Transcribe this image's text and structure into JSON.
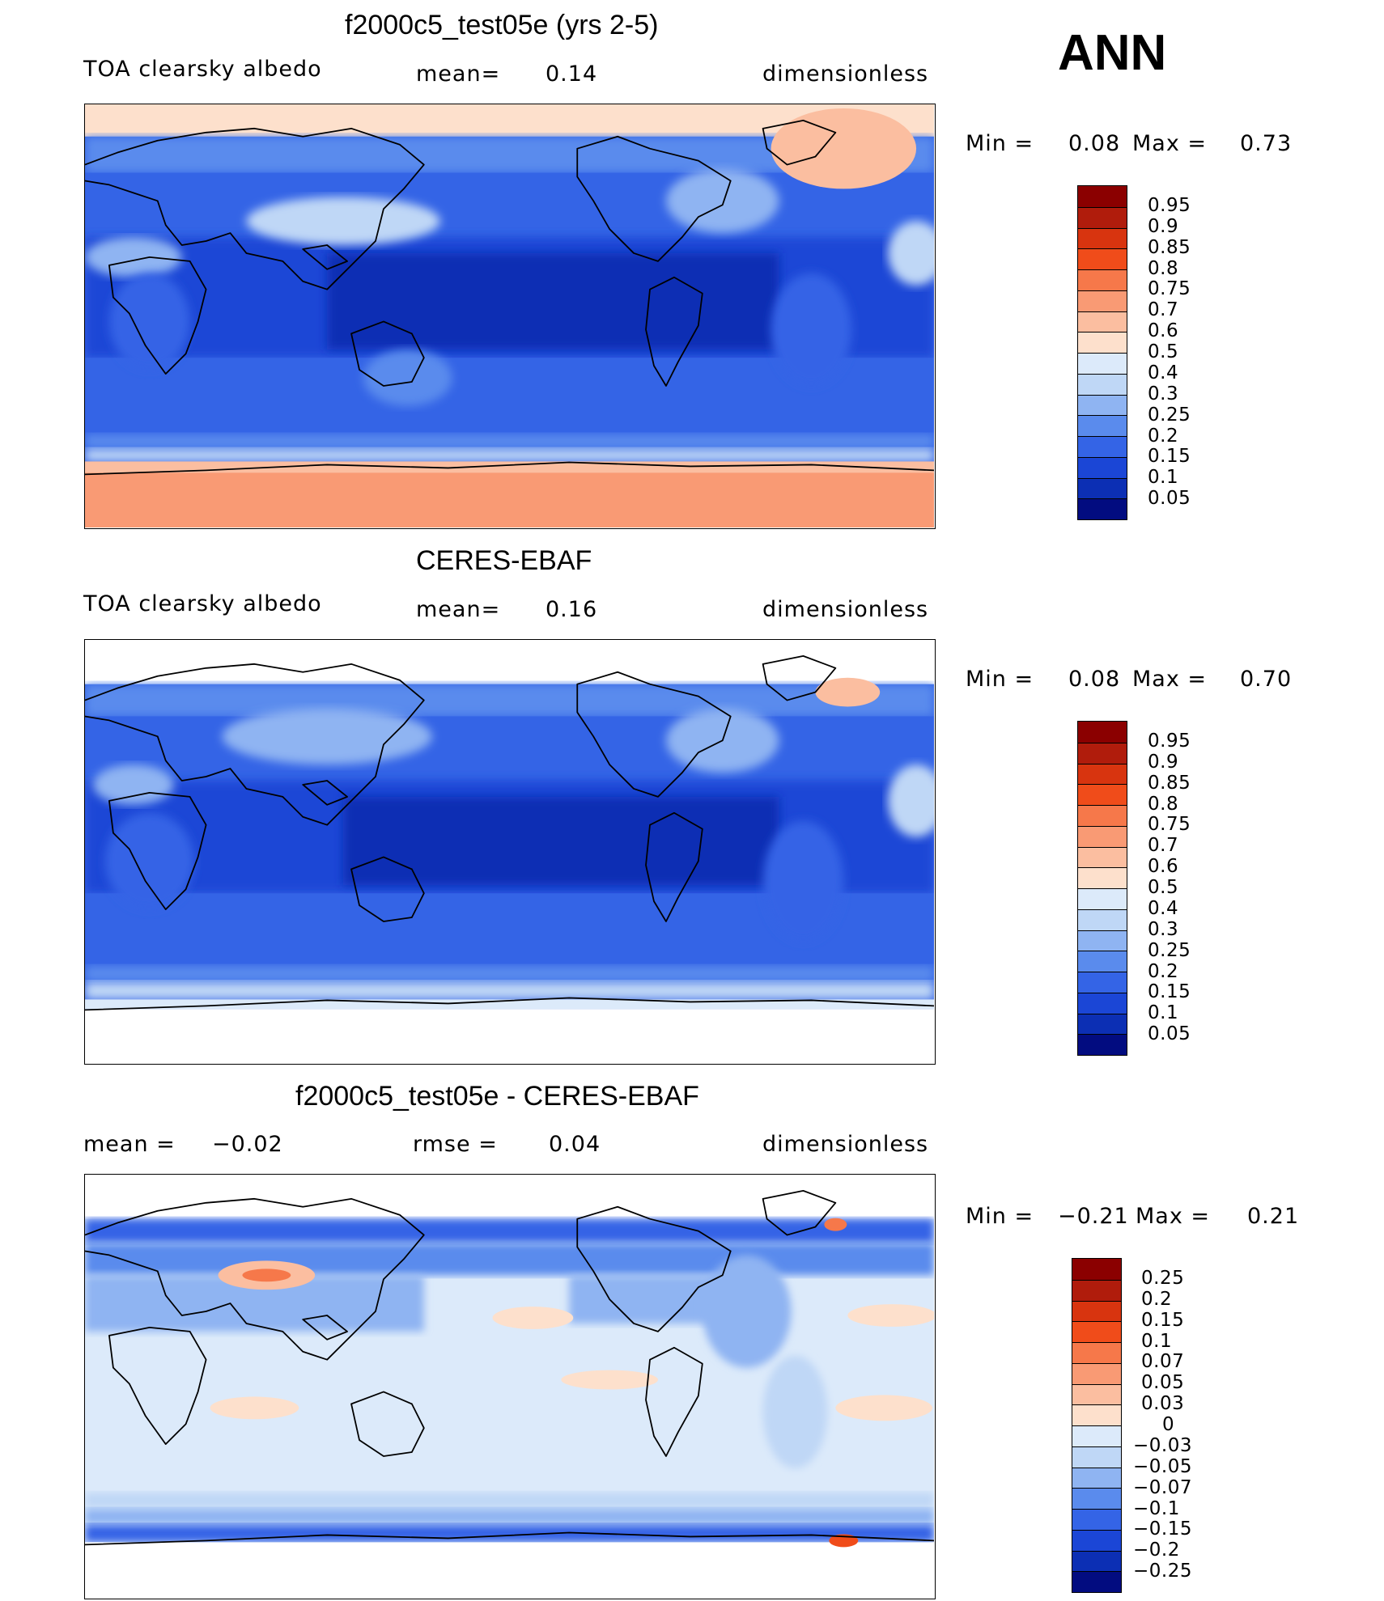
{
  "season": "ANN",
  "panels": [
    {
      "title": "f2000c5_test05e (yrs 2-5)",
      "left_label": "TOA clearsky albedo",
      "mid_label": "mean=",
      "mid_value": "0.14",
      "units": "dimensionless",
      "min_label": "Min =",
      "min_value": "0.08",
      "max_label": "Max =",
      "max_value": "0.73"
    },
    {
      "title": "CERES-EBAF",
      "left_label": "TOA clearsky albedo",
      "mid_label": "mean=",
      "mid_value": "0.16",
      "units": "dimensionless",
      "min_label": "Min =",
      "min_value": "0.08",
      "max_label": "Max =",
      "max_value": "0.70"
    },
    {
      "title": "f2000c5_test05e - CERES-EBAF",
      "left_label": "mean =",
      "left_value": "−0.02",
      "mid_label": "rmse =",
      "mid_value": "0.04",
      "units": "dimensionless",
      "min_label": "Min =",
      "min_value": "−0.21",
      "max_label": "Max =",
      "max_value": "0.21"
    }
  ],
  "colorbars": {
    "albedo": {
      "labels": [
        "0.95",
        "0.9",
        "0.85",
        "0.8",
        "0.75",
        "0.7",
        "0.6",
        "0.5",
        "0.4",
        "0.3",
        "0.25",
        "0.2",
        "0.15",
        "0.1",
        "0.05"
      ],
      "colors": [
        "#8b0000",
        "#b01c0c",
        "#d8340f",
        "#f04c1a",
        "#f6784a",
        "#f99a74",
        "#fbbea0",
        "#fde0cc",
        "#dceafa",
        "#bfd7f6",
        "#8fb4f2",
        "#5a8bed",
        "#3464e6",
        "#1b46d6",
        "#0c2fb4",
        "#020c80"
      ]
    },
    "diff": {
      "labels": [
        "0.25",
        "0.2",
        "0.15",
        "0.1",
        "0.07",
        "0.05",
        "0.03",
        "0",
        "−0.03",
        "−0.05",
        "−0.07",
        "−0.1",
        "−0.15",
        "−0.2",
        "−0.25"
      ],
      "colors": [
        "#8b0000",
        "#b01c0c",
        "#d8340f",
        "#f04c1a",
        "#f6784a",
        "#f99a74",
        "#fbbea0",
        "#fde0cc",
        "#dceafa",
        "#bfd7f6",
        "#8fb4f2",
        "#5a8bed",
        "#3464e6",
        "#1b46d6",
        "#0c2fb4",
        "#020c80"
      ]
    }
  },
  "chart_data": [
    {
      "type": "heatmap",
      "title": "f2000c5_test05e (yrs 2-5)",
      "field": "TOA clearsky albedo",
      "units": "dimensionless",
      "mean": 0.14,
      "min": 0.08,
      "max": 0.73,
      "contour_levels": [
        0.05,
        0.1,
        0.15,
        0.2,
        0.25,
        0.3,
        0.4,
        0.5,
        0.6,
        0.7,
        0.75,
        0.8,
        0.85,
        0.9,
        0.95
      ]
    },
    {
      "type": "heatmap",
      "title": "CERES-EBAF",
      "field": "TOA clearsky albedo",
      "units": "dimensionless",
      "mean": 0.16,
      "min": 0.08,
      "max": 0.7,
      "contour_levels": [
        0.05,
        0.1,
        0.15,
        0.2,
        0.25,
        0.3,
        0.4,
        0.5,
        0.6,
        0.7,
        0.75,
        0.8,
        0.85,
        0.9,
        0.95
      ]
    },
    {
      "type": "heatmap",
      "title": "f2000c5_test05e - CERES-EBAF",
      "units": "dimensionless",
      "mean": -0.02,
      "rmse": 0.04,
      "min": -0.21,
      "max": 0.21,
      "contour_levels": [
        -0.25,
        -0.2,
        -0.15,
        -0.1,
        -0.07,
        -0.05,
        -0.03,
        0,
        0.03,
        0.05,
        0.07,
        0.1,
        0.15,
        0.2,
        0.25
      ]
    }
  ]
}
